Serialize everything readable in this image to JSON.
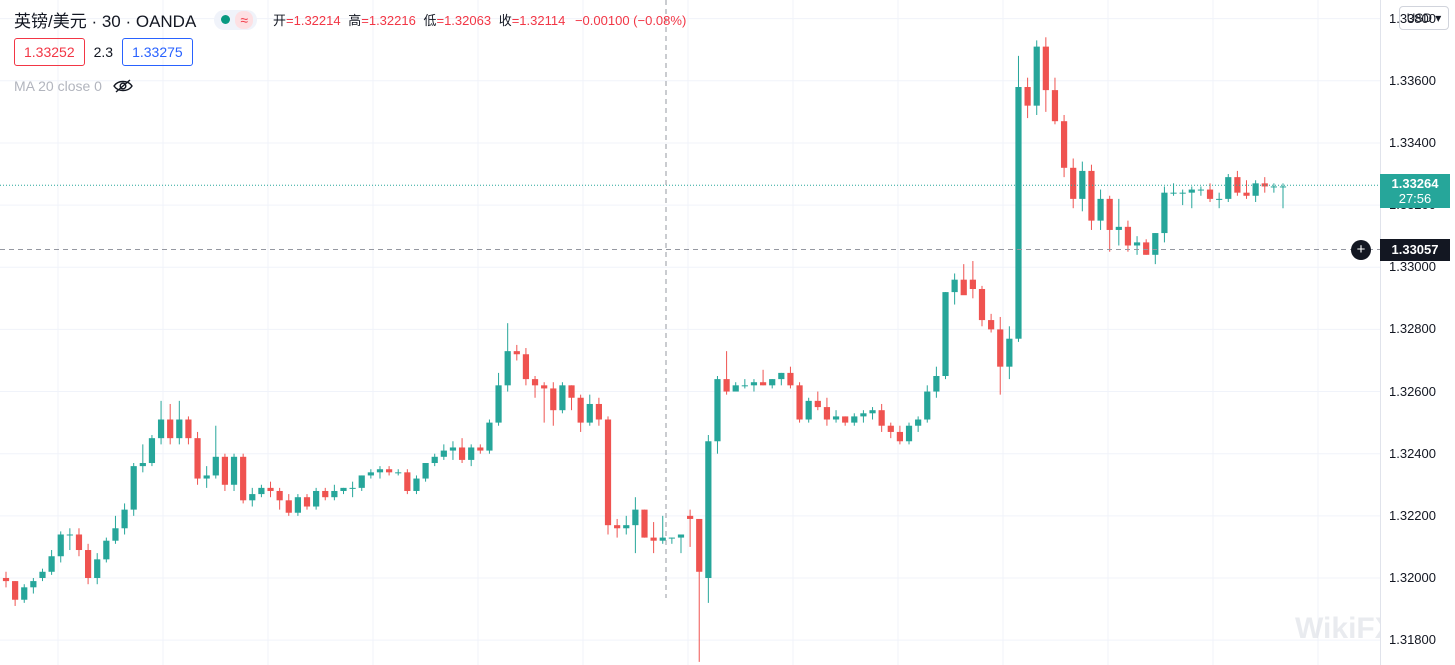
{
  "header": {
    "symbol_title": "英镑/美元 · 30 · OANDA",
    "status_icon": "wave-icon",
    "ohlc": {
      "open_label": "开",
      "open": "=1.32214",
      "high_label": "高",
      "high": "=1.32216",
      "low_label": "低",
      "low": "=1.32063",
      "close_label": "收",
      "close": "=1.32114",
      "change": "−0.00100 (−0.08%)"
    },
    "sell_price": "1.33252",
    "spread": "2.3",
    "buy_price": "1.33275",
    "indicator": "MA 20 close 0",
    "indicator_icon": "eye-crossed-icon"
  },
  "currency": "USD ▾",
  "price_axis_ticks": [
    "1.33800",
    "1.33600",
    "1.33400",
    "1.33200",
    "1.33000",
    "1.32800",
    "1.32600",
    "1.32400",
    "1.32200",
    "1.32000",
    "1.31800"
  ],
  "last_price": "1.33264",
  "countdown": "27:56",
  "crosshair_price": "1.33057",
  "colors": {
    "up": "#26a69a",
    "down": "#ef5350"
  },
  "watermark": "WikiFX",
  "chart_data": {
    "type": "candlestick",
    "symbol": "GBP/USD",
    "interval": "30",
    "ylim": [
      1.3172,
      1.3386
    ],
    "last_price": 1.33264,
    "crosshair_price": 1.33057,
    "candles": [
      [
        1.32,
        1.3202,
        1.3197,
        1.3199
      ],
      [
        1.3199,
        1.3199,
        1.3191,
        1.3193
      ],
      [
        1.3193,
        1.3198,
        1.3192,
        1.3197
      ],
      [
        1.3197,
        1.32,
        1.3195,
        1.3199
      ],
      [
        1.32,
        1.3203,
        1.3199,
        1.3202
      ],
      [
        1.3202,
        1.3209,
        1.3201,
        1.3207
      ],
      [
        1.3207,
        1.3215,
        1.3205,
        1.3214
      ],
      [
        1.3214,
        1.3216,
        1.3209,
        1.3214
      ],
      [
        1.3214,
        1.3216,
        1.3207,
        1.3209
      ],
      [
        1.3209,
        1.3211,
        1.3198,
        1.32
      ],
      [
        1.32,
        1.3208,
        1.3198,
        1.3206
      ],
      [
        1.3206,
        1.3213,
        1.3205,
        1.3212
      ],
      [
        1.3212,
        1.322,
        1.3211,
        1.3216
      ],
      [
        1.3216,
        1.3224,
        1.3214,
        1.3222
      ],
      [
        1.3222,
        1.3237,
        1.322,
        1.3236
      ],
      [
        1.3236,
        1.3243,
        1.3234,
        1.3237
      ],
      [
        1.3237,
        1.3246,
        1.3236,
        1.3245
      ],
      [
        1.3245,
        1.3257,
        1.3243,
        1.3251
      ],
      [
        1.3251,
        1.3256,
        1.3243,
        1.3245
      ],
      [
        1.3245,
        1.3257,
        1.3243,
        1.3251
      ],
      [
        1.3251,
        1.3252,
        1.3243,
        1.3245
      ],
      [
        1.3245,
        1.3247,
        1.323,
        1.3232
      ],
      [
        1.3232,
        1.3236,
        1.3229,
        1.3233
      ],
      [
        1.3233,
        1.3249,
        1.3232,
        1.3239
      ],
      [
        1.3239,
        1.324,
        1.3228,
        1.323
      ],
      [
        1.323,
        1.324,
        1.3228,
        1.3239
      ],
      [
        1.3239,
        1.324,
        1.3224,
        1.3225
      ],
      [
        1.3225,
        1.3229,
        1.3223,
        1.3227
      ],
      [
        1.3227,
        1.323,
        1.3226,
        1.3229
      ],
      [
        1.3229,
        1.3231,
        1.3226,
        1.3228
      ],
      [
        1.3228,
        1.3229,
        1.3222,
        1.3225
      ],
      [
        1.3225,
        1.3227,
        1.322,
        1.3221
      ],
      [
        1.3221,
        1.3227,
        1.322,
        1.3226
      ],
      [
        1.3226,
        1.3227,
        1.3222,
        1.3223
      ],
      [
        1.3223,
        1.3229,
        1.3222,
        1.3228
      ],
      [
        1.3228,
        1.3229,
        1.3225,
        1.3226
      ],
      [
        1.3226,
        1.323,
        1.3225,
        1.3228
      ],
      [
        1.3228,
        1.3229,
        1.3227,
        1.3229
      ],
      [
        1.3229,
        1.3231,
        1.3226,
        1.3229
      ],
      [
        1.3229,
        1.3233,
        1.3228,
        1.3233
      ],
      [
        1.3233,
        1.3235,
        1.3232,
        1.3234
      ],
      [
        1.3234,
        1.3236,
        1.3232,
        1.3235
      ],
      [
        1.3235,
        1.3236,
        1.3233,
        1.3234
      ],
      [
        1.3234,
        1.3235,
        1.3233,
        1.3234
      ],
      [
        1.3234,
        1.3235,
        1.3227,
        1.3228
      ],
      [
        1.3228,
        1.3233,
        1.3227,
        1.3232
      ],
      [
        1.3232,
        1.3237,
        1.3231,
        1.3237
      ],
      [
        1.3237,
        1.324,
        1.3236,
        1.3239
      ],
      [
        1.3239,
        1.3243,
        1.3238,
        1.3241
      ],
      [
        1.3241,
        1.3244,
        1.3238,
        1.3242
      ],
      [
        1.3242,
        1.3245,
        1.3237,
        1.3238
      ],
      [
        1.3238,
        1.3243,
        1.3236,
        1.3242
      ],
      [
        1.3242,
        1.3243,
        1.324,
        1.3241
      ],
      [
        1.3241,
        1.3251,
        1.324,
        1.325
      ],
      [
        1.325,
        1.3266,
        1.3249,
        1.3262
      ],
      [
        1.3262,
        1.3282,
        1.326,
        1.3273
      ],
      [
        1.3273,
        1.3275,
        1.327,
        1.3272
      ],
      [
        1.3272,
        1.3274,
        1.3262,
        1.3264
      ],
      [
        1.3264,
        1.3265,
        1.3258,
        1.3262
      ],
      [
        1.3262,
        1.3263,
        1.325,
        1.3261
      ],
      [
        1.3261,
        1.3263,
        1.3249,
        1.3254
      ],
      [
        1.3254,
        1.3263,
        1.3253,
        1.3262
      ],
      [
        1.3262,
        1.3262,
        1.3254,
        1.3258
      ],
      [
        1.3258,
        1.3259,
        1.3247,
        1.325
      ],
      [
        1.325,
        1.3259,
        1.3249,
        1.3256
      ],
      [
        1.3256,
        1.3258,
        1.3249,
        1.3251
      ],
      [
        1.3251,
        1.3252,
        1.3214,
        1.3217
      ],
      [
        1.3217,
        1.3219,
        1.3213,
        1.3216
      ],
      [
        1.3216,
        1.322,
        1.3214,
        1.3217
      ],
      [
        1.3217,
        1.3226,
        1.3208,
        1.3222
      ],
      [
        1.3222,
        1.3222,
        1.3213,
        1.3213
      ],
      [
        1.3213,
        1.3218,
        1.3208,
        1.3212
      ],
      [
        1.3212,
        1.322,
        1.3211,
        1.3213
      ],
      [
        1.3213,
        1.3213,
        1.3211,
        1.3213
      ],
      [
        1.3213,
        1.3214,
        1.3208,
        1.3214
      ],
      [
        1.322,
        1.3222,
        1.321,
        1.3219
      ],
      [
        1.3219,
        1.3219,
        1.3173,
        1.3202
      ],
      [
        1.32,
        1.3246,
        1.3192,
        1.3244
      ],
      [
        1.3244,
        1.3265,
        1.324,
        1.3264
      ],
      [
        1.3264,
        1.3273,
        1.3259,
        1.326
      ],
      [
        1.326,
        1.3263,
        1.3261,
        1.3262
      ],
      [
        1.3262,
        1.3264,
        1.3261,
        1.3262
      ],
      [
        1.3262,
        1.3264,
        1.326,
        1.3263
      ],
      [
        1.3263,
        1.3267,
        1.3262,
        1.3262
      ],
      [
        1.3262,
        1.3264,
        1.3261,
        1.3264
      ],
      [
        1.3264,
        1.3266,
        1.3262,
        1.3266
      ],
      [
        1.3266,
        1.3268,
        1.3261,
        1.3262
      ],
      [
        1.3262,
        1.3263,
        1.325,
        1.3251
      ],
      [
        1.3251,
        1.3258,
        1.325,
        1.3257
      ],
      [
        1.3257,
        1.326,
        1.3254,
        1.3255
      ],
      [
        1.3255,
        1.3258,
        1.3249,
        1.3251
      ],
      [
        1.3251,
        1.3254,
        1.325,
        1.3252
      ],
      [
        1.3252,
        1.3252,
        1.3249,
        1.325
      ],
      [
        1.325,
        1.3253,
        1.3249,
        1.3252
      ],
      [
        1.3252,
        1.3254,
        1.325,
        1.3253
      ],
      [
        1.3253,
        1.3255,
        1.3251,
        1.3254
      ],
      [
        1.3254,
        1.3256,
        1.3247,
        1.3249
      ],
      [
        1.3249,
        1.325,
        1.3245,
        1.3247
      ],
      [
        1.3247,
        1.3249,
        1.3243,
        1.3244
      ],
      [
        1.3244,
        1.325,
        1.3243,
        1.3249
      ],
      [
        1.3249,
        1.3252,
        1.3247,
        1.3251
      ],
      [
        1.3251,
        1.3262,
        1.325,
        1.326
      ],
      [
        1.326,
        1.3268,
        1.3258,
        1.3265
      ],
      [
        1.3265,
        1.3292,
        1.3264,
        1.3292
      ],
      [
        1.3292,
        1.3298,
        1.3288,
        1.3296
      ],
      [
        1.3296,
        1.3301,
        1.3292,
        1.3291
      ],
      [
        1.3296,
        1.3302,
        1.329,
        1.3293
      ],
      [
        1.3293,
        1.3294,
        1.3281,
        1.3283
      ],
      [
        1.3283,
        1.3285,
        1.3279,
        1.328
      ],
      [
        1.328,
        1.3284,
        1.3259,
        1.3268
      ],
      [
        1.3268,
        1.3281,
        1.3264,
        1.3277
      ],
      [
        1.3277,
        1.3368,
        1.3276,
        1.3358
      ],
      [
        1.3358,
        1.3361,
        1.3348,
        1.3352
      ],
      [
        1.3352,
        1.3373,
        1.3349,
        1.3371
      ],
      [
        1.3371,
        1.3374,
        1.335,
        1.3357
      ],
      [
        1.3357,
        1.3361,
        1.3346,
        1.3347
      ],
      [
        1.3347,
        1.3349,
        1.3329,
        1.3332
      ],
      [
        1.3332,
        1.3335,
        1.3319,
        1.3322
      ],
      [
        1.3322,
        1.3334,
        1.3318,
        1.3331
      ],
      [
        1.3331,
        1.3333,
        1.3312,
        1.3315
      ],
      [
        1.3315,
        1.3325,
        1.3312,
        1.3322
      ],
      [
        1.3322,
        1.3323,
        1.3305,
        1.3312
      ],
      [
        1.3312,
        1.3322,
        1.3307,
        1.3313
      ],
      [
        1.3313,
        1.3315,
        1.3305,
        1.3307
      ],
      [
        1.3307,
        1.331,
        1.3304,
        1.3308
      ],
      [
        1.3308,
        1.3309,
        1.3304,
        1.3304
      ],
      [
        1.3304,
        1.3311,
        1.3301,
        1.3311
      ],
      [
        1.3311,
        1.3326,
        1.3308,
        1.3324
      ],
      [
        1.3324,
        1.3327,
        1.3323,
        1.3324
      ],
      [
        1.3324,
        1.3325,
        1.332,
        1.3324
      ],
      [
        1.3324,
        1.3326,
        1.3319,
        1.3325
      ],
      [
        1.3325,
        1.3326,
        1.3323,
        1.3325
      ],
      [
        1.3325,
        1.3327,
        1.3321,
        1.3322
      ],
      [
        1.3322,
        1.3324,
        1.3319,
        1.3322
      ],
      [
        1.3322,
        1.333,
        1.3321,
        1.3329
      ],
      [
        1.3329,
        1.3331,
        1.3323,
        1.3324
      ],
      [
        1.3324,
        1.3328,
        1.3322,
        1.3323
      ],
      [
        1.3323,
        1.3328,
        1.3321,
        1.3327
      ],
      [
        1.3327,
        1.3329,
        1.3324,
        1.3326
      ],
      [
        1.3326,
        1.3327,
        1.3324,
        1.3326
      ],
      [
        1.3326,
        1.3327,
        1.3319,
        1.3326
      ]
    ]
  }
}
